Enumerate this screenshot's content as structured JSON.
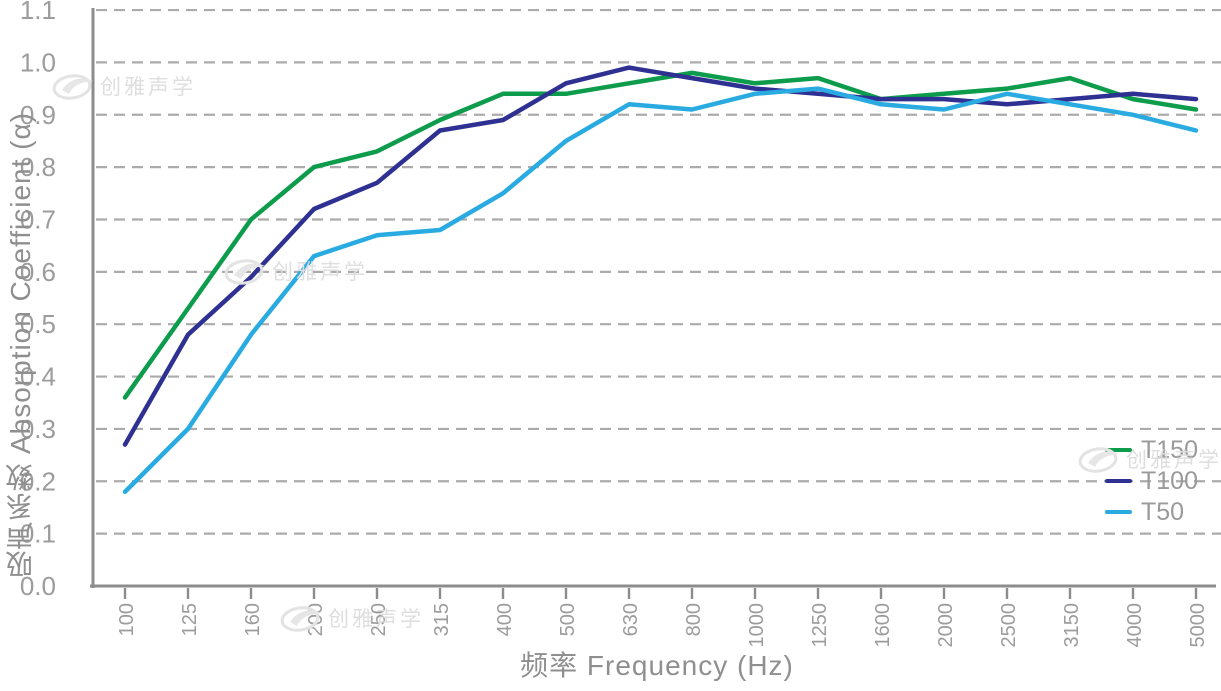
{
  "watermark": {
    "text": "创雅声学"
  },
  "legend": [
    {
      "label": "T150",
      "color": "#0d9b4c"
    },
    {
      "label": "T100",
      "color": "#2e3192"
    },
    {
      "label": "T50",
      "color": "#29abe2"
    }
  ],
  "axes": {
    "xlabel": "频率 Frequency (Hz)",
    "ylabel": "吸声系数 Absorption Coefficient (α)"
  },
  "colors": {
    "grid": "#ababab",
    "axis_line": "#8c8c8c",
    "tick_text": "#9c9c9c",
    "title_text": "#8f8f8f",
    "legend_text": "#9a9a9a",
    "watermark": "#dedede",
    "green": "#0d9b4c",
    "navy": "#2e3192",
    "cyan": "#29abe2"
  },
  "chart_data": {
    "type": "line",
    "title": "",
    "xlabel": "频率 Frequency (Hz)",
    "ylabel": "吸声系数 Absorption Coefficient (α)",
    "x_categories": [
      "100",
      "125",
      "160",
      "200",
      "250",
      "315",
      "400",
      "500",
      "630",
      "800",
      "1000",
      "1250",
      "1600",
      "2000",
      "2500",
      "3150",
      "4000",
      "5000"
    ],
    "yticks": [
      "0.0",
      "0.1",
      "0.2",
      "0.3",
      "0.4",
      "0.5",
      "0.6",
      "0.7",
      "0.8",
      "0.9",
      "1.0",
      "1.1"
    ],
    "ylim": [
      0,
      1.1
    ],
    "grid": "horizontal-dashed",
    "legend_position": "lower right",
    "series": [
      {
        "name": "T150",
        "color": "#0d9b4c",
        "values": [
          0.36,
          0.53,
          0.7,
          0.8,
          0.83,
          0.89,
          0.94,
          0.94,
          0.96,
          0.98,
          0.96,
          0.97,
          0.93,
          0.94,
          0.95,
          0.97,
          0.93,
          0.91
        ]
      },
      {
        "name": "T100",
        "color": "#2e3192",
        "values": [
          0.27,
          0.48,
          0.59,
          0.72,
          0.77,
          0.87,
          0.89,
          0.96,
          0.99,
          0.97,
          0.95,
          0.94,
          0.93,
          0.93,
          0.92,
          0.93,
          0.94,
          0.93
        ]
      },
      {
        "name": "T50",
        "color": "#29abe2",
        "values": [
          0.18,
          0.3,
          0.48,
          0.63,
          0.67,
          0.68,
          0.75,
          0.85,
          0.92,
          0.91,
          0.94,
          0.95,
          0.92,
          0.91,
          0.94,
          0.92,
          0.9,
          0.87
        ]
      }
    ]
  }
}
